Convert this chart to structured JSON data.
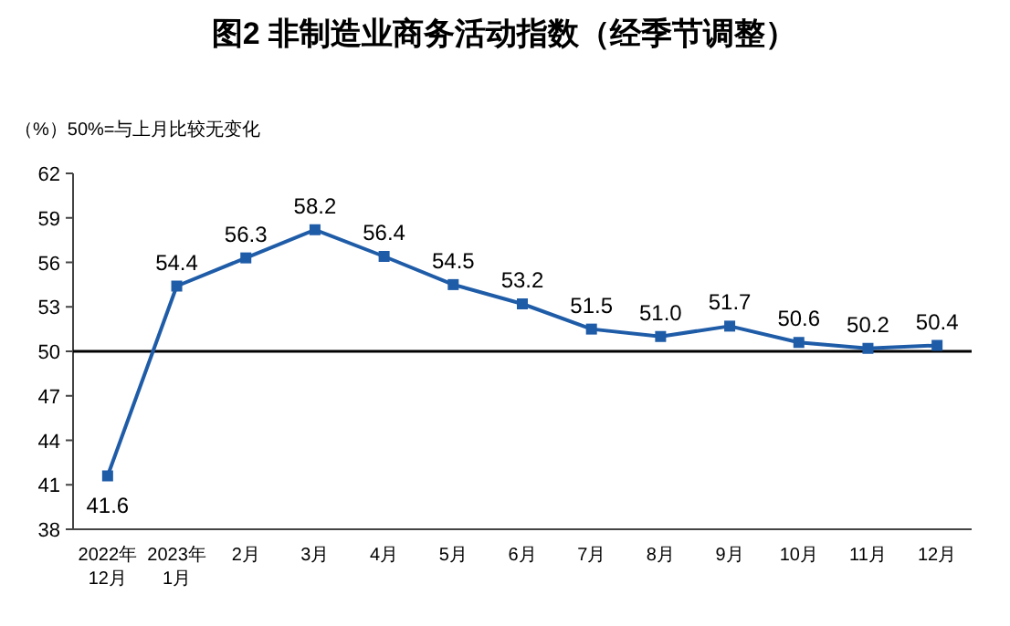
{
  "chart_data": {
    "type": "line",
    "title": "图2  非制造业商务活动指数（经季节调整）",
    "ylabel": "（%）50%=与上月比较无变化",
    "categories": [
      "2022年\n12月",
      "2023年\n1月",
      "2月",
      "3月",
      "4月",
      "5月",
      "6月",
      "7月",
      "8月",
      "9月",
      "10月",
      "11月",
      "12月"
    ],
    "series": [
      {
        "color": "#1f5ca8",
        "values": [
          41.6,
          54.4,
          56.3,
          58.2,
          56.4,
          54.5,
          53.2,
          51.5,
          51.0,
          51.7,
          50.6,
          50.2,
          50.4
        ]
      }
    ],
    "ylim": [
      38,
      62
    ],
    "yticks": [
      38,
      41,
      44,
      47,
      50,
      53,
      56,
      59,
      62
    ],
    "ref_lines": [
      {
        "axis": "y",
        "value": 50,
        "color": "#000000"
      }
    ],
    "value_labels": [
      "41.6",
      "54.4",
      "56.3",
      "58.2",
      "56.4",
      "54.5",
      "53.2",
      "51.5",
      "51.0",
      "51.7",
      "50.6",
      "50.2",
      "50.4"
    ],
    "marker": "square",
    "line_style": "solid",
    "grid": false
  }
}
